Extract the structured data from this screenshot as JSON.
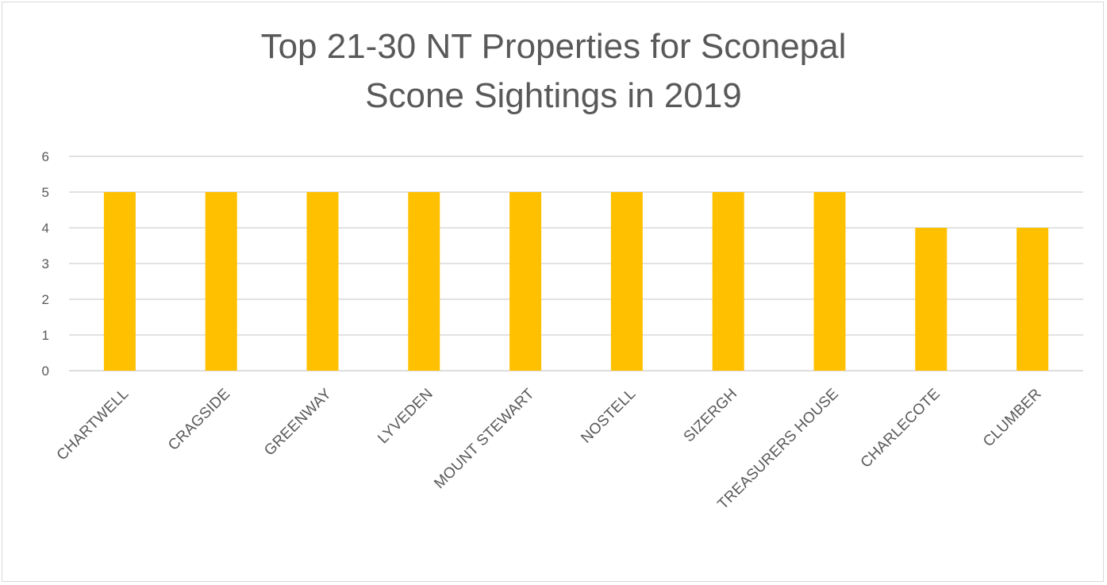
{
  "chart_data": {
    "type": "bar",
    "title": "Top 21-30 NT Properties for Sconepal Scone Sightings in 2019",
    "categories": [
      "CHARTWELL",
      "CRAGSIDE",
      "GREENWAY",
      "LYVEDEN",
      "MOUNT STEWART",
      "NOSTELL",
      "SIZERGH",
      "TREASURERS HOUSE",
      "CHARLECOTE",
      "CLUMBER"
    ],
    "values": [
      5,
      5,
      5,
      5,
      5,
      5,
      5,
      5,
      4,
      4
    ],
    "ylim": [
      0,
      6
    ],
    "yticks": [
      0,
      1,
      2,
      3,
      4,
      5,
      6
    ],
    "grid": true,
    "legend": "none",
    "bar_color": "#ffc000",
    "gridline_color": "#d9d9d9",
    "text_color": "#595959"
  }
}
